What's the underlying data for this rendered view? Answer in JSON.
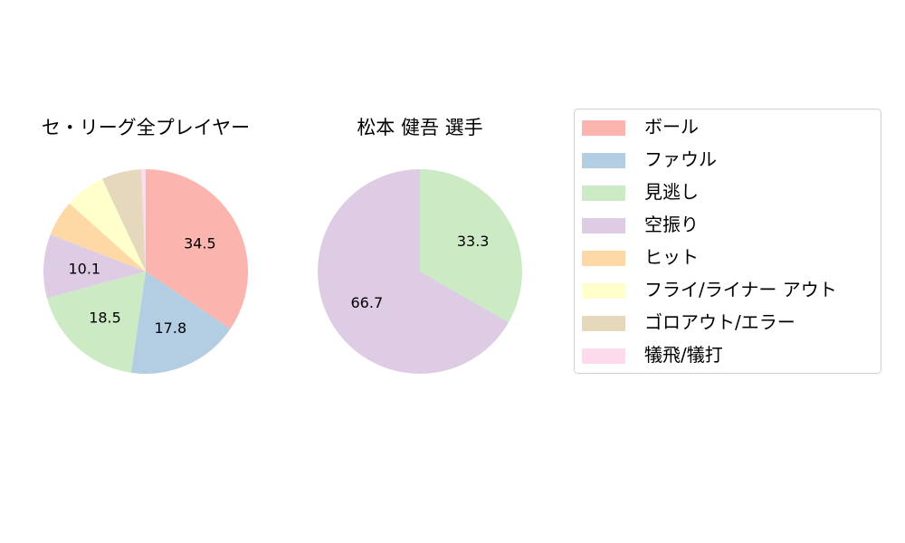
{
  "chart_data": [
    {
      "type": "pie",
      "title": "セ・リーグ全プレイヤー",
      "slices": [
        {
          "label": "ボール",
          "value": 34.5,
          "text": "34.5",
          "color": "#fbb4ae"
        },
        {
          "label": "ファウル",
          "value": 17.8,
          "text": "17.8",
          "color": "#b3cde3"
        },
        {
          "label": "見逃し",
          "value": 18.5,
          "text": "18.5",
          "color": "#ccebc5"
        },
        {
          "label": "空振り",
          "value": 10.1,
          "text": "10.1",
          "color": "#decbe4"
        },
        {
          "label": "ヒット",
          "value": 5.7,
          "text": "",
          "color": "#fed9a6"
        },
        {
          "label": "フライ/ライナー アウト",
          "value": 6.4,
          "text": "",
          "color": "#ffffcc"
        },
        {
          "label": "ゴロアウト/エラー",
          "value": 6.3,
          "text": "",
          "color": "#e5d8bd"
        },
        {
          "label": "犠飛/犠打",
          "value": 0.7,
          "text": "",
          "color": "#fddaec"
        }
      ],
      "start_angle_deg": 90,
      "direction": "clockwise"
    },
    {
      "type": "pie",
      "title": "松本 健吾 選手",
      "slices": [
        {
          "label": "見逃し",
          "value": 33.3,
          "text": "33.3",
          "color": "#ccebc5"
        },
        {
          "label": "空振り",
          "value": 66.7,
          "text": "66.7",
          "color": "#decbe4"
        }
      ],
      "start_angle_deg": 90,
      "direction": "clockwise"
    }
  ],
  "legend": {
    "placement": "right",
    "items": [
      {
        "label": "ボール",
        "color": "#fbb4ae"
      },
      {
        "label": "ファウル",
        "color": "#b3cde3"
      },
      {
        "label": "見逃し",
        "color": "#ccebc5"
      },
      {
        "label": "空振り",
        "color": "#decbe4"
      },
      {
        "label": "ヒット",
        "color": "#fed9a6"
      },
      {
        "label": "フライ/ライナー アウト",
        "color": "#ffffcc"
      },
      {
        "label": "ゴロアウト/エラー",
        "color": "#e5d8bd"
      },
      {
        "label": "犠飛/犠打",
        "color": "#fddaec"
      }
    ]
  }
}
